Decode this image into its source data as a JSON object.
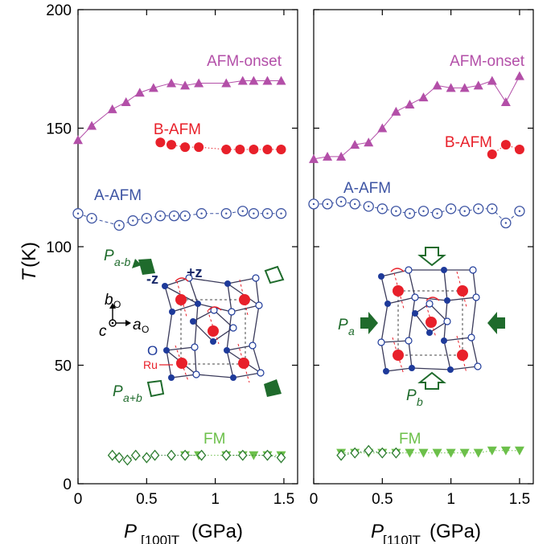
{
  "colors": {
    "afm_onset": "#b34fa8",
    "b_afm": "#e8202a",
    "a_afm": "#3d54a3",
    "fm_triangle": "#6cc04a",
    "fm_diamond": "#2e7d32",
    "arrow": "#1f6b2c",
    "ru_atom": "#e8202a",
    "o_filled": "#1e3a9a",
    "octahedron": "#3a3a5a"
  },
  "panel_labels": {
    "left": {
      "x_title_P": "P",
      "x_title_sub": "[100]T",
      "x_title_unit": "(GPa)",
      "y_title_T": "T",
      "y_title_unit": "(K)"
    },
    "right": {
      "x_title_P": "P",
      "x_title_sub": "[110]T",
      "x_title_unit": "(GPa)"
    }
  },
  "inset_left": {
    "p_ab_minus": "P",
    "p_ab_minus_sub": "a-b",
    "p_ab_plus": "P",
    "p_ab_plus_sub": "a+b",
    "minus_z": "-z",
    "plus_z": "+z",
    "b_axis": "b",
    "b_axis_sub": "O",
    "a_axis": "a",
    "a_axis_sub": "O",
    "c_axis": "c",
    "o_label": "O",
    "ru_label": "Ru"
  },
  "inset_right": {
    "p_a": "P",
    "p_a_sub": "a",
    "p_b": "P",
    "p_b_sub": "b"
  },
  "chart_data": [
    {
      "type": "scatter",
      "xlabel": "P[100]T(GPa)",
      "ylabel": "T(K)",
      "xlim": [
        0,
        1.6
      ],
      "ylim": [
        0,
        200
      ],
      "x_ticks": [
        "0",
        "0.5",
        "1",
        "1.5"
      ],
      "y_ticks": [
        "0",
        "50",
        "100",
        "150",
        "200"
      ],
      "series": [
        {
          "name": "AFM-onset",
          "marker": "triangle-up",
          "x": [
            0,
            0.1,
            0.25,
            0.35,
            0.45,
            0.55,
            0.68,
            0.78,
            0.88,
            1.08,
            1.2,
            1.28,
            1.38,
            1.48
          ],
          "y": [
            145,
            151,
            158,
            161,
            165,
            167,
            169,
            168,
            169,
            169,
            170,
            170,
            170,
            170
          ]
        },
        {
          "name": "B-AFM",
          "marker": "circle-filled",
          "x": [
            0.6,
            0.68,
            0.78,
            0.88,
            1.08,
            1.18,
            1.28,
            1.38,
            1.48
          ],
          "y": [
            144,
            143,
            142,
            142,
            141,
            141,
            141,
            141,
            141
          ]
        },
        {
          "name": "A-AFM",
          "marker": "circle-dot",
          "x": [
            0,
            0.1,
            0.3,
            0.4,
            0.5,
            0.6,
            0.7,
            0.78,
            0.9,
            1.08,
            1.2,
            1.28,
            1.38,
            1.48
          ],
          "y": [
            114,
            112,
            109,
            111,
            112,
            113,
            113,
            113,
            114,
            114,
            115,
            114,
            114,
            114
          ]
        },
        {
          "name": "FM",
          "marker": "triangle-down",
          "x": [
            0.78,
            0.88,
            1.08,
            1.2,
            1.28,
            1.38,
            1.48
          ],
          "y": [
            12,
            12,
            12,
            12,
            12,
            12,
            12
          ]
        },
        {
          "marker": "diamond",
          "x": [
            0.25,
            0.3,
            0.36,
            0.42,
            0.5,
            0.56,
            0.68,
            0.78,
            0.9
          ],
          "y": [
            12,
            11,
            10,
            12,
            11,
            12,
            12,
            12,
            12
          ]
        },
        {
          "marker": "diamond",
          "x": [
            1.08,
            1.2,
            1.38,
            1.48
          ],
          "y": [
            12,
            12,
            12,
            11
          ]
        }
      ]
    },
    {
      "type": "scatter",
      "xlabel": "P[110]T(GPa)",
      "xlim": [
        0,
        1.6
      ],
      "ylim": [
        0,
        200
      ],
      "x_ticks": [
        "0",
        "0.5",
        "1",
        "1.5"
      ],
      "series": [
        {
          "name": "AFM-onset",
          "marker": "triangle-up",
          "x": [
            0,
            0.1,
            0.2,
            0.3,
            0.4,
            0.5,
            0.6,
            0.7,
            0.8,
            0.9,
            1.0,
            1.1,
            1.2,
            1.3,
            1.4,
            1.5
          ],
          "y": [
            137,
            138,
            138,
            143,
            144,
            150,
            157,
            160,
            163,
            168,
            167,
            167,
            168,
            170,
            161,
            172
          ]
        },
        {
          "name": "B-AFM",
          "marker": "circle-filled",
          "x": [
            1.3,
            1.4,
            1.5
          ],
          "y": [
            139,
            143,
            141
          ]
        },
        {
          "name": "A-AFM",
          "marker": "circle-dot",
          "x": [
            0,
            0.1,
            0.2,
            0.3,
            0.4,
            0.5,
            0.6,
            0.7,
            0.8,
            0.9,
            1.0,
            1.1,
            1.2,
            1.3,
            1.4,
            1.5
          ],
          "y": [
            118,
            118,
            119,
            118,
            117,
            116,
            115,
            114,
            115,
            114,
            116,
            115,
            116,
            116,
            110,
            115
          ]
        },
        {
          "name": "FM",
          "marker": "triangle-down",
          "x": [
            0.2,
            0.3,
            0.4,
            0.5,
            0.6,
            0.7,
            0.8,
            0.9,
            1.0,
            1.1,
            1.2,
            1.3,
            1.4,
            1.5
          ],
          "y": [
            13,
            13,
            13,
            13,
            13,
            13,
            13,
            13,
            13,
            13,
            13,
            14,
            14,
            14
          ]
        },
        {
          "marker": "diamond",
          "x": [
            0.2,
            0.3,
            0.4,
            0.5,
            0.6
          ],
          "y": [
            12,
            13,
            14,
            13,
            13
          ]
        }
      ]
    }
  ]
}
